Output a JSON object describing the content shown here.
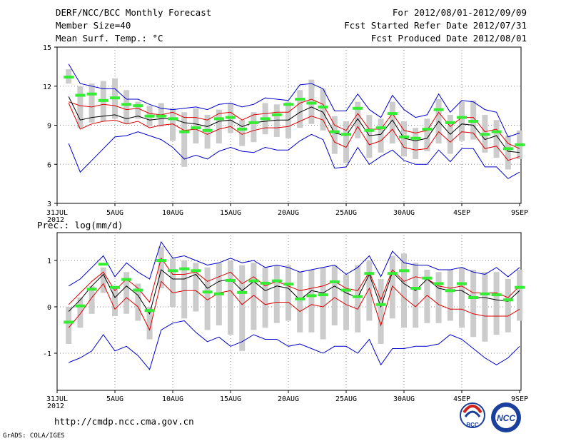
{
  "header": {
    "title": "DERF/NCC/BCC Monthly Forecast",
    "member_size": "Member Size=40",
    "variable1": "Mean Surf. Temp.: °C",
    "period": "For 2012/08/01-2012/09/09",
    "fcst_started": "Fcst Started Refer Date 2012/07/31",
    "fcst_produced": "Fcst Produced Date 2012/08/01"
  },
  "panel2_label": "Prec.: log(mm/d)",
  "footer": {
    "url": "http://cmdp.ncc.cma.gov.cn",
    "grads": "GrADS: COLA/IGES",
    "logo_bcc": "BCC",
    "logo_ncc": "NCC"
  },
  "colors": {
    "ensemble_mean": "#000000",
    "spread_band": "#dd0000",
    "extremes": "#0000cc",
    "observed": "#33ee33",
    "box": "#cccccc",
    "grid": "#888888"
  },
  "chart_data": [
    {
      "type": "line",
      "title": "Mean Surf. Temp.: °C",
      "x_tick_labels": [
        "31JUL",
        "5AUG",
        "10AUG",
        "15AUG",
        "20AUG",
        "25AUG",
        "30AUG",
        "4SEP",
        "9SEP"
      ],
      "x_year_label": "2012",
      "y_tick_labels": [
        "3",
        "6",
        "9",
        "12",
        "15"
      ],
      "ylim": [
        3,
        15
      ],
      "x_days": [
        1,
        2,
        3,
        4,
        5,
        6,
        7,
        8,
        9,
        10,
        11,
        12,
        13,
        14,
        15,
        16,
        17,
        18,
        19,
        20,
        21,
        22,
        23,
        24,
        25,
        26,
        27,
        28,
        29,
        30,
        31,
        32,
        33,
        34,
        35,
        36,
        37,
        38,
        39,
        40
      ],
      "series": [
        {
          "name": "max",
          "values": [
            13.7,
            12.2,
            12.0,
            11.8,
            11.8,
            11.0,
            11.0,
            10.6,
            10.3,
            10.2,
            10.3,
            10.4,
            10.2,
            10.6,
            10.7,
            10.4,
            10.6,
            11.1,
            11.0,
            10.9,
            12.1,
            12.2,
            11.8,
            10.1,
            10.1,
            11.4,
            10.2,
            9.6,
            11.3,
            10.2,
            9.6,
            9.8,
            11.4,
            10.0,
            10.9,
            10.8,
            10.2,
            10.0,
            8.1,
            8.4
          ]
        },
        {
          "name": "upper",
          "values": [
            10.8,
            10.5,
            10.4,
            10.6,
            10.5,
            10.2,
            10.3,
            9.9,
            9.8,
            10.0,
            9.6,
            9.6,
            9.4,
            9.9,
            10.0,
            9.4,
            9.8,
            9.9,
            10.0,
            10.0,
            10.7,
            11.0,
            10.6,
            9.0,
            8.6,
            9.9,
            8.7,
            8.7,
            9.9,
            8.6,
            8.4,
            8.6,
            10.0,
            8.9,
            9.6,
            9.6,
            8.5,
            8.7,
            7.6,
            7.2
          ]
        },
        {
          "name": "mean",
          "values": [
            11.2,
            9.4,
            9.6,
            9.7,
            9.8,
            9.5,
            9.7,
            9.4,
            9.5,
            9.5,
            9.2,
            9.1,
            8.9,
            9.3,
            9.4,
            8.9,
            9.2,
            9.3,
            9.4,
            9.4,
            10.0,
            10.4,
            10.0,
            8.4,
            8.2,
            9.5,
            8.2,
            8.3,
            9.4,
            8.0,
            7.8,
            8.0,
            9.3,
            8.3,
            9.1,
            9.0,
            7.9,
            8.2,
            7.0,
            6.9
          ]
        },
        {
          "name": "lower",
          "values": [
            10.7,
            8.7,
            9.1,
            9.3,
            9.4,
            9.1,
            9.3,
            8.8,
            9.0,
            9.1,
            8.6,
            8.7,
            8.3,
            8.7,
            8.9,
            8.3,
            8.6,
            8.8,
            8.8,
            8.9,
            9.3,
            9.7,
            9.4,
            7.7,
            7.3,
            8.9,
            7.5,
            7.8,
            8.7,
            7.3,
            7.1,
            7.2,
            8.5,
            7.7,
            8.5,
            8.4,
            7.2,
            7.4,
            6.3,
            6.6
          ]
        },
        {
          "name": "min",
          "values": [
            7.6,
            5.4,
            6.3,
            7.2,
            8.1,
            8.2,
            8.5,
            8.2,
            7.9,
            7.3,
            6.4,
            6.7,
            6.4,
            7.0,
            7.3,
            7.0,
            6.9,
            7.3,
            7.1,
            7.1,
            7.8,
            8.3,
            7.9,
            5.7,
            5.8,
            7.3,
            6.0,
            6.6,
            7.1,
            6.3,
            6.0,
            6.0,
            7.1,
            6.2,
            7.2,
            7.2,
            5.8,
            5.8,
            4.9,
            5.4
          ]
        },
        {
          "name": "observed",
          "values": [
            12.7,
            11.3,
            11.4,
            10.9,
            11.1,
            10.6,
            10.5,
            9.7,
            9.7,
            9.5,
            8.5,
            8.8,
            8.6,
            9.5,
            9.6,
            8.7,
            9.2,
            9.5,
            9.8,
            10.6,
            11.0,
            10.7,
            10.4,
            8.5,
            8.3,
            10.3,
            8.6,
            8.8,
            9.9,
            8.1,
            8.0,
            8.7,
            10.2,
            9.2,
            9.6,
            9.3,
            8.3,
            8.5,
            7.2,
            7.5
          ]
        },
        {
          "name": "box_low",
          "values": [
            12.2,
            8.8,
            9.2,
            9.3,
            9.5,
            9.1,
            9.5,
            8.9,
            8.9,
            7.8,
            5.8,
            7.6,
            7.2,
            7.6,
            8.4,
            7.4,
            7.7,
            8.3,
            8.1,
            8.0,
            8.8,
            9.1,
            8.6,
            6.8,
            6.1,
            8.0,
            6.5,
            6.9,
            7.6,
            6.6,
            6.4,
            7.0,
            7.6,
            6.8,
            7.8,
            7.9,
            6.9,
            6.5,
            5.6,
            6.4
          ]
        },
        {
          "name": "box_high",
          "values": [
            13.3,
            12.0,
            12.2,
            12.4,
            12.6,
            11.7,
            10.8,
            10.5,
            10.7,
            10.3,
            10.0,
            10.3,
            9.8,
            10.2,
            10.7,
            9.4,
            10.0,
            10.7,
            10.6,
            10.8,
            11.7,
            12.5,
            11.8,
            9.7,
            9.3,
            10.8,
            9.8,
            9.5,
            10.8,
            9.3,
            8.8,
            9.5,
            11.0,
            9.8,
            10.8,
            10.9,
            9.8,
            9.4,
            8.2,
            8.6
          ]
        }
      ]
    },
    {
      "type": "line",
      "title": "Prec.: log(mm/d)",
      "x_tick_labels": [
        "31JUL",
        "5AUG",
        "10AUG",
        "15AUG",
        "20AUG",
        "25AUG",
        "30AUG",
        "4SEP",
        "9SEP"
      ],
      "x_year_label": "2012",
      "y_tick_labels": [
        "-1",
        "0",
        "1"
      ],
      "ylim": [
        -1.8,
        1.6
      ],
      "x_days": [
        1,
        2,
        3,
        4,
        5,
        6,
        7,
        8,
        9,
        10,
        11,
        12,
        13,
        14,
        15,
        16,
        17,
        18,
        19,
        20,
        21,
        22,
        23,
        24,
        25,
        26,
        27,
        28,
        29,
        30,
        31,
        32,
        33,
        34,
        35,
        36,
        37,
        38,
        39,
        40
      ],
      "series": [
        {
          "name": "max",
          "values": [
            0.45,
            0.6,
            0.85,
            1.1,
            0.65,
            0.95,
            0.75,
            0.6,
            1.4,
            1.05,
            1.1,
            1.0,
            0.9,
            0.95,
            1.05,
            0.95,
            1.0,
            0.85,
            0.9,
            0.85,
            0.75,
            0.8,
            0.85,
            0.9,
            0.7,
            0.85,
            1.1,
            0.65,
            1.2,
            0.95,
            0.9,
            0.9,
            0.8,
            0.8,
            0.85,
            0.75,
            0.7,
            0.85,
            0.65,
            0.85
          ]
        },
        {
          "name": "upper",
          "values": [
            0.05,
            0.3,
            0.55,
            0.75,
            0.35,
            0.6,
            0.4,
            0.1,
            1.05,
            0.7,
            0.7,
            0.75,
            0.55,
            0.65,
            0.75,
            0.5,
            0.65,
            0.45,
            0.55,
            0.45,
            0.35,
            0.4,
            0.45,
            0.55,
            0.4,
            0.35,
            0.75,
            0.15,
            0.8,
            0.55,
            0.65,
            0.6,
            0.45,
            0.4,
            0.45,
            0.3,
            0.3,
            0.3,
            0.2,
            0.45
          ]
        },
        {
          "name": "mean",
          "values": [
            -0.1,
            0.15,
            0.45,
            0.7,
            0.2,
            0.45,
            0.25,
            -0.15,
            0.8,
            0.6,
            0.6,
            0.7,
            0.4,
            0.55,
            0.6,
            0.35,
            0.55,
            0.35,
            0.45,
            0.4,
            0.15,
            0.35,
            0.3,
            0.45,
            0.3,
            0.2,
            0.7,
            0.0,
            0.75,
            0.5,
            0.35,
            0.6,
            0.4,
            0.35,
            0.35,
            0.2,
            0.2,
            0.15,
            0.12,
            0.35
          ]
        },
        {
          "name": "lower",
          "values": [
            -0.45,
            -0.15,
            0.2,
            0.5,
            -0.05,
            0.2,
            0.0,
            -0.5,
            0.55,
            0.3,
            0.35,
            0.35,
            0.15,
            0.3,
            0.35,
            0.05,
            0.25,
            0.05,
            0.1,
            0.1,
            -0.1,
            0.05,
            0.0,
            0.2,
            0.05,
            -0.05,
            0.4,
            -0.4,
            0.45,
            0.2,
            0.0,
            0.25,
            0.05,
            -0.05,
            -0.05,
            -0.15,
            -0.2,
            -0.2,
            -0.2,
            -0.05
          ]
        },
        {
          "name": "min",
          "values": [
            -1.2,
            -1.1,
            -0.95,
            -0.6,
            -0.95,
            -0.85,
            -1.05,
            -1.35,
            -0.5,
            -0.35,
            -0.3,
            -0.55,
            -0.75,
            -0.65,
            -0.85,
            -0.75,
            -0.6,
            -0.7,
            -0.7,
            -0.85,
            -0.8,
            -0.9,
            -1.0,
            -0.85,
            -0.85,
            -1.0,
            -0.7,
            -1.25,
            -0.9,
            -0.9,
            -0.85,
            -0.85,
            -0.8,
            -0.6,
            -0.7,
            -0.9,
            -1.1,
            -1.25,
            -1.1,
            -0.85
          ]
        },
        {
          "name": "observed",
          "values": [
            -0.33,
            0.02,
            0.38,
            0.92,
            0.42,
            0.59,
            0.36,
            -0.08,
            1.0,
            0.78,
            0.82,
            0.78,
            0.32,
            0.28,
            0.57,
            0.31,
            0.56,
            0.51,
            0.56,
            0.49,
            0.17,
            0.24,
            0.26,
            0.54,
            0.36,
            0.22,
            0.72,
            0.05,
            0.72,
            0.78,
            0.4,
            0.62,
            0.5,
            0.35,
            0.5,
            0.2,
            0.28,
            0.26,
            0.15,
            0.42
          ]
        },
        {
          "name": "box_low",
          "values": [
            -0.8,
            -0.45,
            -0.15,
            0.3,
            -0.2,
            -0.15,
            -0.3,
            -0.7,
            0.4,
            0.0,
            -0.25,
            -0.1,
            -0.5,
            -0.4,
            -0.6,
            -0.95,
            -0.5,
            -0.45,
            -0.35,
            -0.3,
            -0.55,
            -0.55,
            -0.7,
            -0.4,
            -0.5,
            -0.55,
            -0.3,
            -0.8,
            -0.25,
            -0.45,
            -0.45,
            -0.35,
            -0.35,
            -0.3,
            -0.45,
            -0.65,
            -0.75,
            -0.6,
            -0.55,
            -0.3
          ]
        },
        {
          "name": "box_high",
          "values": [
            0.0,
            0.2,
            0.45,
            0.85,
            0.45,
            0.75,
            0.5,
            0.0,
            1.3,
            1.05,
            1.0,
            0.95,
            0.85,
            0.95,
            1.0,
            0.9,
            0.95,
            0.85,
            0.9,
            0.9,
            0.75,
            0.8,
            0.85,
            0.9,
            0.7,
            0.9,
            1.0,
            0.6,
            1.1,
            1.15,
            0.95,
            0.8,
            0.75,
            0.8,
            0.85,
            0.8,
            0.75,
            0.75,
            0.6,
            0.8
          ]
        }
      ]
    }
  ]
}
